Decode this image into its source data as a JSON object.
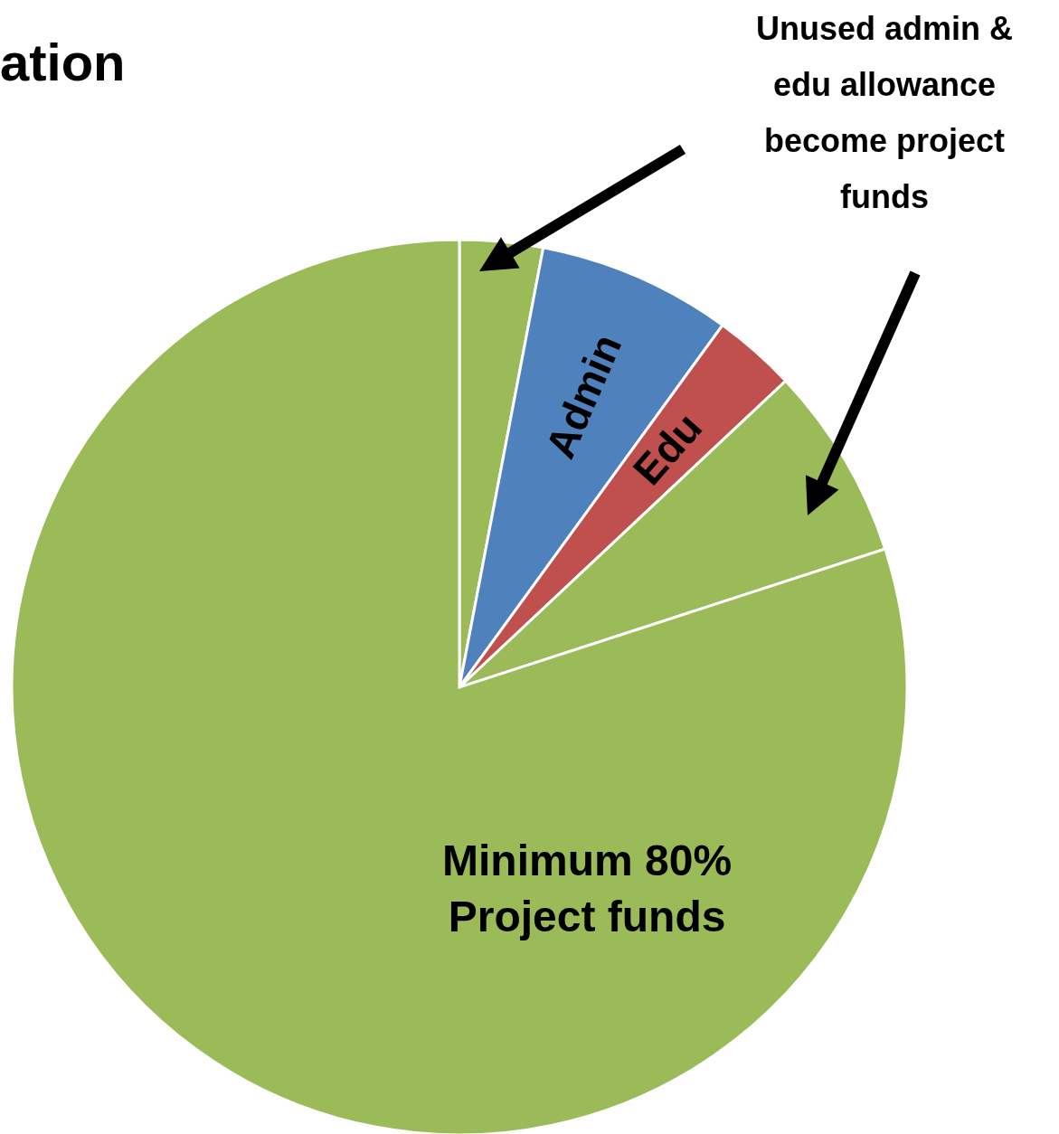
{
  "chart_data": {
    "type": "pie",
    "title": "ation",
    "categories": [
      null,
      "Admin",
      "Edu",
      null,
      "Minimum 80%\nProject funds"
    ],
    "values": [
      3,
      7,
      3,
      7,
      80
    ],
    "colors": [
      "#9bbb59",
      "#4f81bd",
      "#c0504d",
      "#9bbb59",
      "#9bbb59"
    ],
    "annotations": [
      "Unused admin &\nedu allowance\nbecome project\nfunds"
    ]
  }
}
